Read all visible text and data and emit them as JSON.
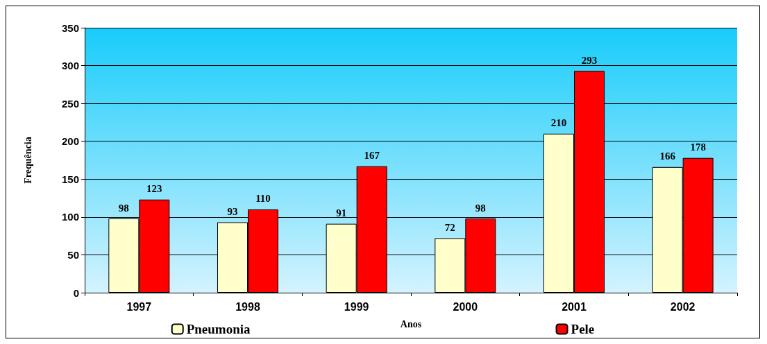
{
  "chart_data": {
    "type": "bar",
    "xlabel": "Anos",
    "ylabel": "Frequência",
    "categories": [
      "1997",
      "1998",
      "1999",
      "2000",
      "2001",
      "2002"
    ],
    "series": [
      {
        "name": "Pneumonia",
        "color": "#ffffcc",
        "values": [
          98,
          93,
          91,
          72,
          210,
          166
        ]
      },
      {
        "name": "Pele",
        "color": "#ff0000",
        "values": [
          123,
          110,
          167,
          98,
          293,
          178
        ]
      }
    ],
    "ylim": [
      0,
      350
    ],
    "yticks": [
      0,
      50,
      100,
      150,
      200,
      250,
      300,
      350
    ],
    "grid": "y",
    "legend": "bottom",
    "data_labels": true
  }
}
